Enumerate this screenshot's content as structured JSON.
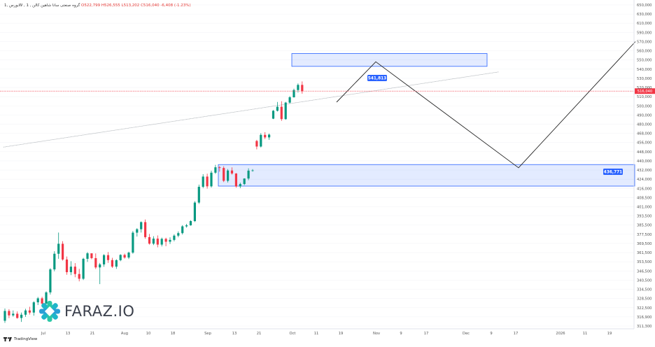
{
  "header": {
    "symbol": "بورس ,1W , گروه صنعتی سانا شاهین کالن , 1",
    "open": "O522,799",
    "high": "H526,555",
    "low": "L513,202",
    "close": "C516,040",
    "change": "-6,408 (-1.23%)"
  },
  "brand": {
    "name": "FARAZ.IO"
  },
  "tradingview": {
    "label": "TradingView"
  },
  "chart_data": {
    "type": "candlestick",
    "y_axis": {
      "ticks": [
        "311,300",
        "316,900",
        "322,500",
        "328,500",
        "334,500",
        "340,500",
        "346,500",
        "353,500",
        "361,500",
        "369,500",
        "377,500",
        "385,500",
        "393,500",
        "401,000",
        "408,500",
        "416,000",
        "424,000",
        "432,000",
        "440,000",
        "448,000",
        "456,000",
        "468,000",
        "480,000",
        "490,000",
        "500,000",
        "510,000",
        "520,000",
        "530,000",
        "540,000",
        "550,000",
        "560,000",
        "570,000",
        "590,000",
        "610,000",
        "630,000",
        "650,000"
      ]
    },
    "x_axis": {
      "ticks": [
        "Jul",
        "13",
        "21",
        "Aug",
        "10",
        "18",
        "Sep",
        "13",
        "21",
        "Oct",
        "11",
        "19",
        "Nov",
        "9",
        "17",
        "Dec",
        "9",
        "17",
        "2026",
        "11",
        "19"
      ]
    },
    "price_line": {
      "value": "516,040",
      "color": "#f23645"
    },
    "zones": [
      {
        "label": "541,813",
        "from": 543000,
        "to": 557000,
        "color": "#2962ff"
      },
      {
        "label": "436,771",
        "from": 418000,
        "to": 436771,
        "color": "#2962ff"
      }
    ],
    "projection": [
      [
        0,
        504000
      ],
      [
        1,
        548000
      ],
      [
        2,
        434000
      ],
      [
        3,
        570000
      ]
    ],
    "trendline": [
      [
        0,
        452000
      ],
      [
        1,
        537000
      ]
    ],
    "candles": [
      [
        314500,
        322000,
        313200,
        320500
      ],
      [
        320500,
        321600,
        316100,
        317800
      ],
      [
        317800,
        320800,
        317000,
        318800
      ],
      [
        318800,
        320200,
        315800,
        316200
      ],
      [
        316200,
        319500,
        313800,
        318200
      ],
      [
        318200,
        321800,
        316900,
        320800
      ],
      [
        320800,
        323100,
        318300,
        319500
      ],
      [
        319500,
        326700,
        317600,
        326000
      ],
      [
        326000,
        329500,
        324200,
        328600
      ],
      [
        328600,
        329600,
        324400,
        325200
      ],
      [
        325200,
        333200,
        323800,
        332500
      ],
      [
        332500,
        348700,
        331100,
        347700
      ],
      [
        347700,
        362700,
        346300,
        360500
      ],
      [
        360500,
        379000,
        356100,
        369200
      ],
      [
        369200,
        371500,
        354500,
        355500
      ],
      [
        355500,
        358100,
        344000,
        345700
      ],
      [
        345700,
        354000,
        343800,
        349800
      ],
      [
        349800,
        352500,
        342400,
        344500
      ],
      [
        344500,
        348100,
        339700,
        341400
      ],
      [
        341400,
        357000,
        340600,
        356100
      ],
      [
        356100,
        362000,
        353400,
        360900
      ],
      [
        360900,
        360000,
        355700,
        356700
      ],
      [
        356700,
        360800,
        348000,
        349200
      ],
      [
        349200,
        352600,
        337900,
        351500
      ],
      [
        351500,
        360200,
        349700,
        359300
      ],
      [
        359300,
        362000,
        352700,
        355000
      ],
      [
        355000,
        357000,
        348800,
        349800
      ],
      [
        349800,
        355700,
        348100,
        354900
      ],
      [
        354900,
        360100,
        354000,
        359500
      ],
      [
        359500,
        360600,
        356200,
        357200
      ],
      [
        357200,
        362300,
        355900,
        361500
      ],
      [
        361500,
        380300,
        360500,
        378900
      ],
      [
        378900,
        382800,
        375500,
        381900
      ],
      [
        381900,
        388700,
        379000,
        388100
      ],
      [
        388100,
        390400,
        373600,
        375000
      ],
      [
        375000,
        377800,
        368500,
        369300
      ],
      [
        369300,
        375800,
        368100,
        373700
      ],
      [
        373700,
        376500,
        366100,
        368500
      ],
      [
        368500,
        374600,
        366900,
        373500
      ],
      [
        373500,
        374500,
        367100,
        371000
      ],
      [
        371000,
        374800,
        369000,
        372600
      ],
      [
        372600,
        377500,
        371300,
        376300
      ],
      [
        376300,
        380000,
        374900,
        378500
      ],
      [
        378500,
        385400,
        377300,
        384400
      ],
      [
        384400,
        386600,
        383300,
        385300
      ],
      [
        385300,
        389800,
        385000,
        389000
      ],
      [
        389000,
        405600,
        388200,
        404400
      ],
      [
        404400,
        419300,
        403300,
        417400
      ],
      [
        417400,
        428400,
        416200,
        426300
      ],
      [
        426300,
        428800,
        415800,
        417800
      ],
      [
        417800,
        431400,
        416700,
        429700
      ],
      [
        429700,
        436500,
        428700,
        434400
      ],
      [
        434400,
        435500,
        430600,
        433800
      ],
      [
        433800,
        435300,
        421500,
        422600
      ],
      [
        422600,
        432900,
        421100,
        431600
      ],
      [
        431600,
        434300,
        428000,
        429000
      ],
      [
        429000,
        429300,
        416600,
        417700
      ],
      [
        417700,
        421000,
        416200,
        419800
      ],
      [
        419800,
        424800,
        418800,
        424600
      ],
      [
        424600,
        433500,
        423100,
        431500
      ],
      [
        431500,
        432800,
        430700,
        431700
      ],
      [
        458000,
        459500,
        450000,
        452500
      ],
      [
        452500,
        468200,
        451700,
        466000
      ],
      [
        466000,
        469500,
        460500,
        462700
      ],
      [
        462700,
        467800,
        459500,
        466300
      ],
      [
        486000,
        495400,
        485500,
        494600
      ],
      [
        494600,
        504200,
        493800,
        499000
      ],
      [
        499000,
        505000,
        483600,
        485500
      ],
      [
        485500,
        504300,
        484800,
        503500
      ],
      [
        503500,
        510600,
        502500,
        509300
      ],
      [
        509300,
        518700,
        509000,
        517200
      ],
      [
        517200,
        524400,
        514500,
        522800
      ],
      [
        522800,
        526600,
        513200,
        516000
      ]
    ]
  }
}
